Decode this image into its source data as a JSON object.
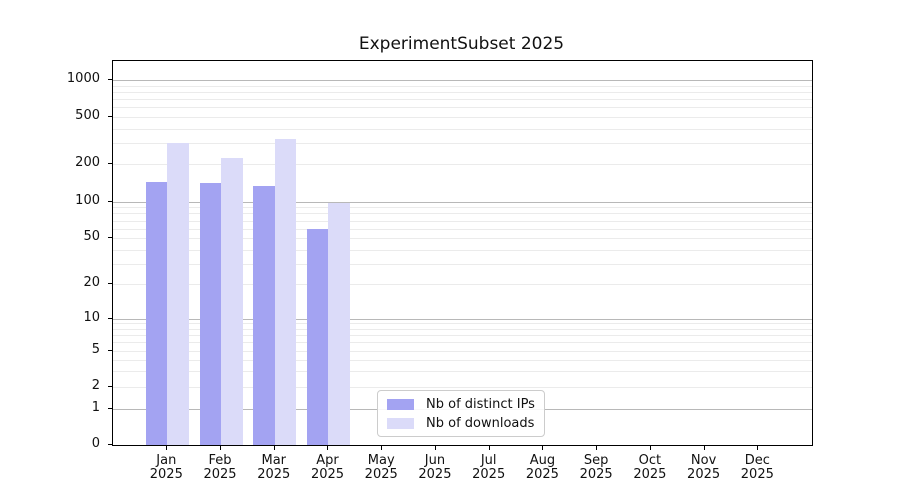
{
  "title": "ExperimentSubset 2025",
  "colors": {
    "distinct_ips": "#a3a3f2",
    "downloads": "#dbdbf9",
    "grid_major": "#b8b8b8",
    "grid_minor": "#ebebeb",
    "axis": "#000000"
  },
  "legend": {
    "items": [
      {
        "label": "Nb of distinct IPs",
        "color": "#a3a3f2"
      },
      {
        "label": "Nb of downloads",
        "color": "#dbdbf9"
      }
    ]
  },
  "chart_data": {
    "type": "bar",
    "title": "ExperimentSubset 2025",
    "xlabel": "",
    "ylabel": "",
    "scale": "symlog (linear 0-1, logarithmic above 1)",
    "grid": "on (major gray at 1,10,100,1000; faint minors at 2-9 per decade)",
    "legend_position": "lower center inside plot",
    "ylim": [
      0,
      1400
    ],
    "yticks": [
      1000,
      500,
      200,
      100,
      50,
      20,
      10,
      5,
      2,
      1,
      0
    ],
    "minor_gridline_values": [
      2,
      3,
      4,
      5,
      6,
      7,
      8,
      9,
      20,
      30,
      40,
      50,
      60,
      70,
      80,
      90,
      200,
      300,
      400,
      500,
      600,
      700,
      800,
      900
    ],
    "major_gridline_values": [
      1,
      10,
      100,
      1000
    ],
    "categories": [
      "Jan 2025",
      "Feb 2025",
      "Mar 2025",
      "Apr 2025",
      "May 2025",
      "Jun 2025",
      "Jul 2025",
      "Aug 2025",
      "Sep 2025",
      "Oct 2025",
      "Nov 2025",
      "Dec 2025"
    ],
    "month_labels": [
      "Jan",
      "Feb",
      "Mar",
      "Apr",
      "May",
      "Jun",
      "Jul",
      "Aug",
      "Sep",
      "Oct",
      "Nov",
      "Dec"
    ],
    "year_label": "2025",
    "series": [
      {
        "name": "Nb of distinct IPs",
        "color": "#a3a3f2",
        "values": [
          145,
          142,
          135,
          60,
          null,
          null,
          null,
          null,
          null,
          null,
          null,
          null
        ]
      },
      {
        "name": "Nb of downloads",
        "color": "#dbdbf9",
        "values": [
          300,
          225,
          325,
          97,
          null,
          null,
          null,
          null,
          null,
          null,
          null,
          null
        ]
      }
    ]
  }
}
